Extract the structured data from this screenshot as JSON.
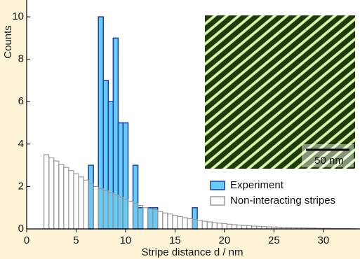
{
  "chart_data": {
    "type": "histogram",
    "xlabel": "Stripe distance d / nm",
    "ylabel": "Counts",
    "xlim": [
      0,
      33.7
    ],
    "ylim": [
      0,
      10.2
    ],
    "xticks": [
      0,
      5,
      10,
      15,
      20,
      25,
      30
    ],
    "yticks": [
      0,
      2,
      4,
      6,
      8,
      10
    ],
    "legend": "lower right",
    "inset_scale_label": "50 nm",
    "series": [
      {
        "name": "Experiment",
        "color": "#66ccf5",
        "edgecolor": "#1a3fa8",
        "bins": [
          6.25,
          6.75,
          7.25,
          7.75,
          8.25,
          8.75,
          9.25,
          9.75,
          10.25,
          10.75,
          11.25,
          11.75,
          12.25,
          12.75,
          13.25,
          13.75,
          14.25,
          14.75,
          15.25,
          15.75,
          16.25,
          16.75,
          17.25
        ],
        "values": [
          3,
          0,
          10,
          7,
          6,
          9,
          5,
          5,
          0,
          3,
          1,
          0,
          1,
          1,
          0,
          0,
          0,
          0,
          0,
          0,
          0,
          1
        ]
      },
      {
        "name": "Non-interacting stripes",
        "color": "#ffffff",
        "edgecolor": "#9a9a9a",
        "bins": [
          1.75,
          2.25,
          2.75,
          3.25,
          3.75,
          4.25,
          4.75,
          5.25,
          5.75,
          6.25,
          6.75,
          7.25,
          7.75,
          8.25,
          8.75,
          9.25,
          9.75,
          10.25,
          10.75,
          11.25,
          11.75,
          12.25,
          12.75,
          13.25,
          13.75,
          14.25,
          14.75,
          15.25,
          15.75,
          16.25,
          16.75,
          17.25,
          17.75,
          18.25,
          18.75,
          19.25,
          19.75,
          20.25,
          20.75,
          21.25,
          21.75,
          22.25,
          22.75,
          23.25,
          23.75,
          24.25,
          24.75,
          25.25,
          25.75,
          26.25,
          26.75,
          27.25,
          27.75,
          28.25,
          28.75,
          29.25,
          29.75,
          30.25,
          30.75,
          31.25,
          31.75,
          32.25,
          32.75,
          33.25
        ],
        "values": [
          3.5,
          3.35,
          3.2,
          3.05,
          2.9,
          2.75,
          2.6,
          2.45,
          2.3,
          2.15,
          2.0,
          1.9,
          1.8,
          1.7,
          1.6,
          1.5,
          1.4,
          1.3,
          1.2,
          1.1,
          1.0,
          0.95,
          0.9,
          0.82,
          0.75,
          0.7,
          0.64,
          0.58,
          0.53,
          0.48,
          0.44,
          0.4,
          0.36,
          0.33,
          0.3,
          0.27,
          0.25,
          0.22,
          0.2,
          0.18,
          0.16,
          0.15,
          0.13,
          0.12,
          0.11,
          0.1,
          0.09,
          0.08,
          0.07,
          0.06,
          0.06,
          0.05,
          0.05,
          0.04,
          0.04,
          0.03,
          0.03,
          0.03,
          0.02,
          0.02,
          0.02,
          0.02,
          0.01
        ]
      }
    ]
  }
}
